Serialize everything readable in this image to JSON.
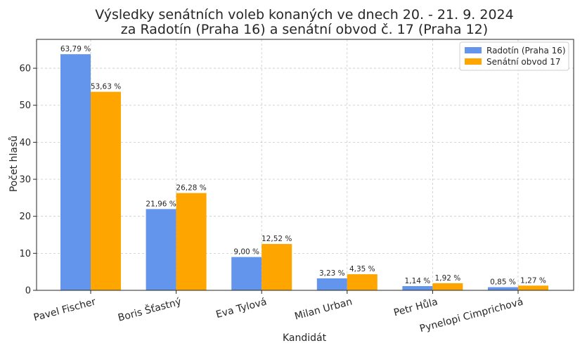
{
  "chart_data": {
    "type": "bar",
    "title": [
      "Výsledky senátních voleb konaných ve dnech 20. - 21. 9. 2024",
      "za Radotín (Praha 16) a senátní obvod č. 17 (Praha 12)"
    ],
    "xlabel": "Kandidát",
    "ylabel": "Počet hlasů",
    "ylim": [
      0,
      67.8
    ],
    "yticks": [
      0,
      10,
      20,
      30,
      40,
      50,
      60
    ],
    "grid": true,
    "legend_position": "top-right",
    "categories": [
      "Pavel Fischer",
      "Boris Šťastný",
      "Eva Tylová",
      "Milan Urban",
      "Petr Hůla",
      "Pynelopi Cimprichová"
    ],
    "series": [
      {
        "name": "Radotín (Praha 16)",
        "color": "#6495ED",
        "values": [
          63.79,
          21.96,
          9.0,
          3.23,
          1.14,
          0.85
        ],
        "labels": [
          "63,79 %",
          "21,96 %",
          "9,00 %",
          "3,23 %",
          "1,14 %",
          "0,85 %"
        ]
      },
      {
        "name": "Senátní obvod 17",
        "color": "#FFA500",
        "values": [
          53.63,
          26.28,
          12.52,
          4.35,
          1.92,
          1.27
        ],
        "labels": [
          "53,63 %",
          "26,28 %",
          "12,52 %",
          "4,35 %",
          "1,92 %",
          "1,27 %"
        ]
      }
    ]
  }
}
